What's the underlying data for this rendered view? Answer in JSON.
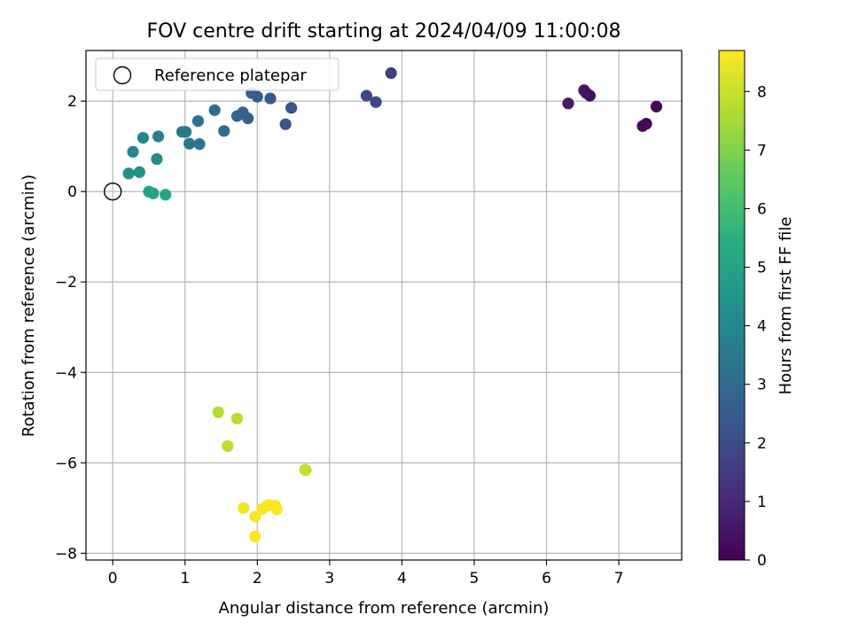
{
  "chart_data": {
    "type": "scatter",
    "title": "FOV centre drift starting at 2024/04/09 11:00:08",
    "xlabel": "Angular distance from reference (arcmin)",
    "ylabel": "Rotation from reference (arcmin)",
    "xlim": [
      -0.37,
      7.87
    ],
    "ylim": [
      -8.15,
      3.12
    ],
    "xticks": [
      0,
      1,
      2,
      3,
      4,
      5,
      6,
      7
    ],
    "yticks": [
      -8,
      -6,
      -4,
      -2,
      0,
      2
    ],
    "grid": true,
    "legend": {
      "placement": "top-left",
      "entries": [
        "Reference platepar"
      ]
    },
    "reference_point": {
      "x": 0,
      "y": 0
    },
    "colorbar": {
      "label": "Hours from first FF file",
      "range": [
        0,
        8.7
      ],
      "ticks": [
        0,
        1,
        2,
        3,
        4,
        5,
        6,
        7,
        8
      ],
      "colormap": "viridis"
    },
    "points": [
      {
        "x": 7.52,
        "y": 1.88,
        "h": 0.1
      },
      {
        "x": 7.38,
        "y": 1.5,
        "h": 0.15
      },
      {
        "x": 7.33,
        "y": 1.45,
        "h": 0.2
      },
      {
        "x": 6.6,
        "y": 2.12,
        "h": 0.35
      },
      {
        "x": 6.55,
        "y": 2.18,
        "h": 0.4
      },
      {
        "x": 6.52,
        "y": 2.24,
        "h": 0.45
      },
      {
        "x": 6.3,
        "y": 1.95,
        "h": 0.6
      },
      {
        "x": 3.85,
        "y": 2.62,
        "h": 1.7
      },
      {
        "x": 3.64,
        "y": 1.98,
        "h": 1.8
      },
      {
        "x": 3.51,
        "y": 2.12,
        "h": 1.9
      },
      {
        "x": 2.47,
        "y": 1.85,
        "h": 2.2
      },
      {
        "x": 2.39,
        "y": 1.49,
        "h": 2.3
      },
      {
        "x": 2.18,
        "y": 2.06,
        "h": 2.4
      },
      {
        "x": 2.0,
        "y": 2.1,
        "h": 2.5
      },
      {
        "x": 1.92,
        "y": 2.18,
        "h": 2.55
      },
      {
        "x": 1.87,
        "y": 1.62,
        "h": 2.7
      },
      {
        "x": 1.8,
        "y": 1.75,
        "h": 2.75
      },
      {
        "x": 1.72,
        "y": 1.67,
        "h": 2.8
      },
      {
        "x": 1.54,
        "y": 1.34,
        "h": 3.0
      },
      {
        "x": 1.41,
        "y": 1.8,
        "h": 3.1
      },
      {
        "x": 1.18,
        "y": 1.56,
        "h": 3.3
      },
      {
        "x": 1.2,
        "y": 1.05,
        "h": 3.35
      },
      {
        "x": 1.06,
        "y": 1.06,
        "h": 3.45
      },
      {
        "x": 1.01,
        "y": 1.32,
        "h": 3.5
      },
      {
        "x": 0.96,
        "y": 1.32,
        "h": 3.55
      },
      {
        "x": 0.63,
        "y": 1.22,
        "h": 3.8
      },
      {
        "x": 0.42,
        "y": 1.19,
        "h": 3.9
      },
      {
        "x": 0.28,
        "y": 0.88,
        "h": 4.0
      },
      {
        "x": 0.61,
        "y": 0.72,
        "h": 4.1
      },
      {
        "x": 0.37,
        "y": 0.43,
        "h": 4.3
      },
      {
        "x": 0.22,
        "y": 0.4,
        "h": 4.4
      },
      {
        "x": 0.5,
        "y": 0.0,
        "h": 4.9
      },
      {
        "x": 0.56,
        "y": -0.04,
        "h": 5.0
      },
      {
        "x": 0.73,
        "y": -0.07,
        "h": 5.1
      },
      {
        "x": 1.46,
        "y": -4.88,
        "h": 7.7
      },
      {
        "x": 1.72,
        "y": -5.02,
        "h": 7.75
      },
      {
        "x": 1.59,
        "y": -5.63,
        "h": 7.8
      },
      {
        "x": 2.67,
        "y": -6.16,
        "h": 7.9
      },
      {
        "x": 2.66,
        "y": -6.15,
        "h": 7.92
      },
      {
        "x": 1.81,
        "y": -7.0,
        "h": 8.55
      },
      {
        "x": 1.97,
        "y": -7.19,
        "h": 8.6
      },
      {
        "x": 2.07,
        "y": -7.02,
        "h": 8.62
      },
      {
        "x": 2.13,
        "y": -6.95,
        "h": 8.63
      },
      {
        "x": 2.16,
        "y": -6.93,
        "h": 8.64
      },
      {
        "x": 2.25,
        "y": -6.95,
        "h": 8.65
      },
      {
        "x": 2.27,
        "y": -7.03,
        "h": 8.66
      },
      {
        "x": 1.97,
        "y": -7.63,
        "h": 8.7
      }
    ]
  }
}
